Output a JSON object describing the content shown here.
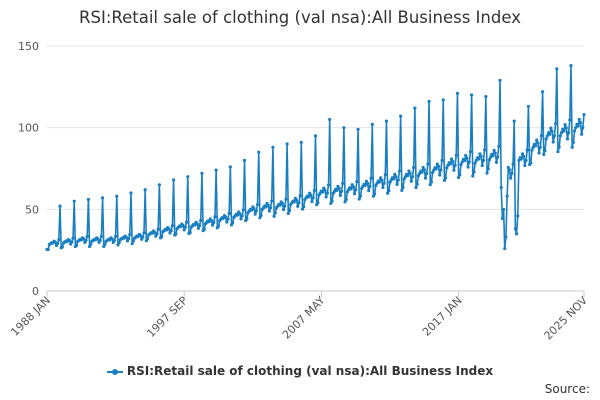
{
  "chart_data": {
    "type": "line",
    "title": "RSI:Retail sale of clothing (val nsa):All Business Index",
    "xlabel": "",
    "ylabel": "",
    "x_tick_labels": [
      "1988 JAN",
      "1997 SEP",
      "2007 MAY",
      "2017 JAN",
      "2025 NOV"
    ],
    "y_ticks": [
      0,
      50,
      100,
      150
    ],
    "ylim": [
      0,
      150
    ],
    "xlim": [
      "1988 JAN",
      "2025 NOV"
    ],
    "grid": "horizontal",
    "legend_position": "bottom",
    "series": [
      {
        "name": "RSI:Retail sale of clothing (val nsa):All Business Index",
        "color": "#1a7fc1",
        "annual_summary": [
          {
            "year": 1988,
            "low": 23,
            "typical": 29,
            "december_peak": 52
          },
          {
            "year": 1989,
            "low": 25,
            "typical": 30,
            "december_peak": 55
          },
          {
            "year": 1990,
            "low": 26,
            "typical": 31,
            "december_peak": 56
          },
          {
            "year": 1991,
            "low": 27,
            "typical": 31,
            "december_peak": 57
          },
          {
            "year": 1992,
            "low": 27,
            "typical": 31,
            "december_peak": 58
          },
          {
            "year": 1993,
            "low": 28,
            "typical": 32,
            "december_peak": 60
          },
          {
            "year": 1994,
            "low": 29,
            "typical": 33,
            "december_peak": 62
          },
          {
            "year": 1995,
            "low": 30,
            "typical": 35,
            "december_peak": 65
          },
          {
            "year": 1996,
            "low": 31,
            "typical": 37,
            "december_peak": 68
          },
          {
            "year": 1997,
            "low": 32,
            "typical": 39,
            "december_peak": 70
          },
          {
            "year": 1998,
            "low": 33,
            "typical": 40,
            "december_peak": 72
          },
          {
            "year": 1999,
            "low": 35,
            "typical": 42,
            "december_peak": 74
          },
          {
            "year": 2000,
            "low": 37,
            "typical": 44,
            "december_peak": 76
          },
          {
            "year": 2001,
            "low": 39,
            "typical": 46,
            "december_peak": 80
          },
          {
            "year": 2002,
            "low": 41,
            "typical": 49,
            "december_peak": 85
          },
          {
            "year": 2003,
            "low": 43,
            "typical": 51,
            "december_peak": 88
          },
          {
            "year": 2004,
            "low": 45,
            "typical": 52,
            "december_peak": 90
          },
          {
            "year": 2005,
            "low": 46,
            "typical": 54,
            "december_peak": 91
          },
          {
            "year": 2006,
            "low": 48,
            "typical": 57,
            "december_peak": 95
          },
          {
            "year": 2007,
            "low": 50,
            "typical": 60,
            "december_peak": 105
          },
          {
            "year": 2008,
            "low": 51,
            "typical": 61,
            "december_peak": 100
          },
          {
            "year": 2009,
            "low": 52,
            "typical": 62,
            "december_peak": 99
          },
          {
            "year": 2010,
            "low": 54,
            "typical": 64,
            "december_peak": 102
          },
          {
            "year": 2011,
            "low": 55,
            "typical": 66,
            "december_peak": 104
          },
          {
            "year": 2012,
            "low": 57,
            "typical": 68,
            "december_peak": 107
          },
          {
            "year": 2013,
            "low": 59,
            "typical": 70,
            "december_peak": 112
          },
          {
            "year": 2014,
            "low": 61,
            "typical": 72,
            "december_peak": 116
          },
          {
            "year": 2015,
            "low": 62,
            "typical": 74,
            "december_peak": 117
          },
          {
            "year": 2016,
            "low": 64,
            "typical": 77,
            "december_peak": 121
          },
          {
            "year": 2017,
            "low": 66,
            "typical": 79,
            "december_peak": 120
          },
          {
            "year": 2018,
            "low": 68,
            "typical": 80,
            "december_peak": 119
          },
          {
            "year": 2019,
            "low": 70,
            "typical": 82,
            "december_peak": 129
          },
          {
            "year": 2020,
            "low": 26,
            "typical": 72,
            "december_peak": 104
          },
          {
            "year": 2021,
            "low": 35,
            "typical": 80,
            "december_peak": 113
          },
          {
            "year": 2022,
            "low": 72,
            "typical": 88,
            "december_peak": 122
          },
          {
            "year": 2023,
            "low": 80,
            "typical": 95,
            "december_peak": 136
          },
          {
            "year": 2024,
            "low": 82,
            "typical": 97,
            "december_peak": 138
          },
          {
            "year": 2025,
            "low": 85,
            "typical": 100,
            "december_peak": null
          }
        ],
        "monthly_pattern": [
          0.88,
          0.9,
          0.98,
          1.0,
          1.02,
          1.01,
          1.05,
          1.03,
          0.96,
          1.0,
          1.08,
          1.72
        ],
        "covid_2020": {
          "2020-03": 50,
          "2020-04": 26,
          "2020-05": 33,
          "2020-06": 58
        },
        "lockdown_2021": {
          "2021-01": 38,
          "2021-02": 35,
          "2021-03": 46
        }
      }
    ]
  },
  "legend": {
    "label": "RSI:Retail sale of clothing (val nsa):All Business Index"
  },
  "footer": {
    "source_label": "Source:"
  }
}
